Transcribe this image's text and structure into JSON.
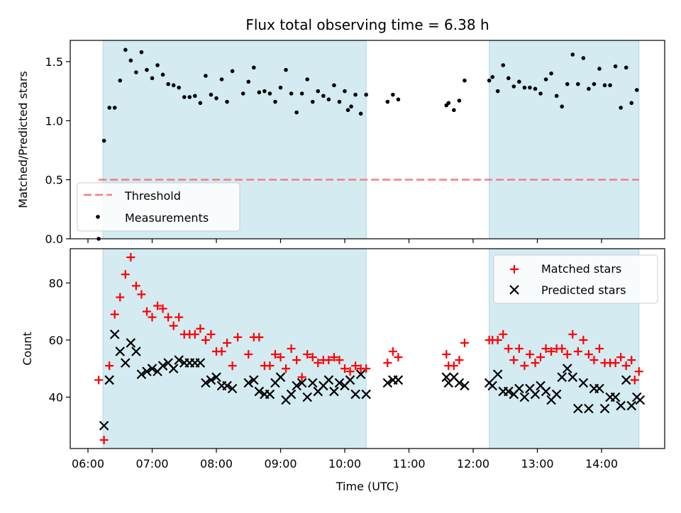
{
  "chart_data": {
    "title": "Flux total observing time = 6.38 h",
    "shaded_intervals": [
      [
        "06:14",
        "10:20"
      ],
      [
        "12:15",
        "14:35"
      ]
    ],
    "colors": {
      "shade": "#add8e6",
      "threshold": "#f08080",
      "matched": "#ff0000",
      "predicted": "#000000",
      "measure": "#000000"
    },
    "x_axis": {
      "label": "Time (UTC)",
      "ticks": [
        "06:00",
        "07:00",
        "08:00",
        "09:00",
        "10:00",
        "11:00",
        "12:00",
        "13:00",
        "14:00"
      ]
    },
    "top": {
      "type": "scatter",
      "ylabel": "Matched/Predicted stars",
      "ylim": [
        0,
        1.68
      ],
      "yticks": [
        "0.0",
        "0.5",
        "1.0",
        "1.5"
      ],
      "legend": {
        "position": "lower-left",
        "threshold_label": "Threshold",
        "measure_label": "Measurements"
      },
      "threshold": {
        "value": 0.5,
        "x_start": "06:10",
        "x_end": "14:35"
      },
      "measurements": [
        [
          "06:10",
          0.0
        ],
        [
          "06:15",
          0.83
        ],
        [
          "06:20",
          1.11
        ],
        [
          "06:25",
          1.11
        ],
        [
          "06:30",
          1.34
        ],
        [
          "06:35",
          1.6
        ],
        [
          "06:40",
          1.51
        ],
        [
          "06:45",
          1.41
        ],
        [
          "06:50",
          1.58
        ],
        [
          "06:55",
          1.43
        ],
        [
          "07:00",
          1.36
        ],
        [
          "07:05",
          1.47
        ],
        [
          "07:10",
          1.39
        ],
        [
          "07:15",
          1.31
        ],
        [
          "07:20",
          1.3
        ],
        [
          "07:25",
          1.28
        ],
        [
          "07:30",
          1.2
        ],
        [
          "07:35",
          1.2
        ],
        [
          "07:40",
          1.21
        ],
        [
          "07:45",
          1.15
        ],
        [
          "07:50",
          1.38
        ],
        [
          "07:55",
          1.22
        ],
        [
          "08:00",
          1.19
        ],
        [
          "08:05",
          1.35
        ],
        [
          "08:10",
          1.16
        ],
        [
          "08:15",
          1.42
        ],
        [
          "08:25",
          1.23
        ],
        [
          "08:30",
          1.33
        ],
        [
          "08:35",
          1.45
        ],
        [
          "08:40",
          1.24
        ],
        [
          "08:45",
          1.25
        ],
        [
          "08:50",
          1.23
        ],
        [
          "08:55",
          1.16
        ],
        [
          "09:00",
          1.28
        ],
        [
          "09:05",
          1.43
        ],
        [
          "09:10",
          1.23
        ],
        [
          "09:15",
          1.07
        ],
        [
          "09:20",
          1.23
        ],
        [
          "09:25",
          1.35
        ],
        [
          "09:30",
          1.16
        ],
        [
          "09:35",
          1.25
        ],
        [
          "09:40",
          1.21
        ],
        [
          "09:45",
          1.18
        ],
        [
          "09:50",
          1.3
        ],
        [
          "09:55",
          1.16
        ],
        [
          "10:00",
          1.25
        ],
        [
          "10:03",
          1.09
        ],
        [
          "10:06",
          1.12
        ],
        [
          "10:10",
          1.22
        ],
        [
          "10:15",
          1.06
        ],
        [
          "10:20",
          1.22
        ],
        [
          "10:40",
          1.16
        ],
        [
          "10:45",
          1.22
        ],
        [
          "10:50",
          1.18
        ],
        [
          "11:35",
          1.13
        ],
        [
          "11:37",
          1.15
        ],
        [
          "11:42",
          1.09
        ],
        [
          "11:47",
          1.17
        ],
        [
          "11:52",
          1.34
        ],
        [
          "12:15",
          1.34
        ],
        [
          "12:18",
          1.37
        ],
        [
          "12:23",
          1.25
        ],
        [
          "12:28",
          1.47
        ],
        [
          "12:33",
          1.36
        ],
        [
          "12:38",
          1.29
        ],
        [
          "12:43",
          1.33
        ],
        [
          "12:48",
          1.28
        ],
        [
          "12:53",
          1.28
        ],
        [
          "12:58",
          1.27
        ],
        [
          "13:03",
          1.23
        ],
        [
          "13:08",
          1.35
        ],
        [
          "13:13",
          1.4
        ],
        [
          "13:18",
          1.21
        ],
        [
          "13:23",
          1.12
        ],
        [
          "13:28",
          1.31
        ],
        [
          "13:33",
          1.56
        ],
        [
          "13:38",
          1.31
        ],
        [
          "13:43",
          1.53
        ],
        [
          "13:48",
          1.27
        ],
        [
          "13:53",
          1.31
        ],
        [
          "13:58",
          1.44
        ],
        [
          "14:03",
          1.3
        ],
        [
          "14:08",
          1.3
        ],
        [
          "14:13",
          1.46
        ],
        [
          "14:18",
          1.11
        ],
        [
          "14:23",
          1.45
        ],
        [
          "14:28",
          1.15
        ],
        [
          "14:33",
          1.26
        ]
      ]
    },
    "bottom": {
      "type": "scatter",
      "ylabel": "Count",
      "ylim": [
        22,
        92
      ],
      "yticks": [
        "40",
        "60",
        "80"
      ],
      "legend": {
        "position": "top-right",
        "matched_label": "Matched stars",
        "predicted_label": "Predicted stars"
      },
      "matched": [
        [
          "06:10",
          46
        ],
        [
          "06:15",
          25
        ],
        [
          "06:20",
          51
        ],
        [
          "06:25",
          69
        ],
        [
          "06:30",
          75
        ],
        [
          "06:35",
          83
        ],
        [
          "06:40",
          89
        ],
        [
          "06:45",
          79
        ],
        [
          "06:50",
          76
        ],
        [
          "06:55",
          70
        ],
        [
          "07:00",
          68
        ],
        [
          "07:05",
          72
        ],
        [
          "07:10",
          71
        ],
        [
          "07:15",
          68
        ],
        [
          "07:20",
          65
        ],
        [
          "07:25",
          68
        ],
        [
          "07:30",
          62
        ],
        [
          "07:35",
          62
        ],
        [
          "07:40",
          62
        ],
        [
          "07:45",
          64
        ],
        [
          "07:50",
          60
        ],
        [
          "07:55",
          62
        ],
        [
          "08:00",
          56
        ],
        [
          "08:05",
          56
        ],
        [
          "08:10",
          59
        ],
        [
          "08:15",
          51
        ],
        [
          "08:20",
          61
        ],
        [
          "08:30",
          55
        ],
        [
          "08:35",
          61
        ],
        [
          "08:40",
          61
        ],
        [
          "08:45",
          51
        ],
        [
          "08:50",
          51
        ],
        [
          "08:55",
          55
        ],
        [
          "09:00",
          54
        ],
        [
          "09:05",
          50
        ],
        [
          "09:10",
          57
        ],
        [
          "09:15",
          53
        ],
        [
          "09:20",
          47
        ],
        [
          "09:25",
          55
        ],
        [
          "09:30",
          54
        ],
        [
          "09:35",
          52
        ],
        [
          "09:40",
          53
        ],
        [
          "09:45",
          53
        ],
        [
          "09:50",
          54
        ],
        [
          "09:55",
          53
        ],
        [
          "10:00",
          50
        ],
        [
          "10:05",
          49
        ],
        [
          "10:10",
          51
        ],
        [
          "10:15",
          50
        ],
        [
          "10:20",
          50
        ],
        [
          "10:40",
          52
        ],
        [
          "10:45",
          56
        ],
        [
          "10:50",
          54
        ],
        [
          "11:35",
          55
        ],
        [
          "11:37",
          51
        ],
        [
          "11:42",
          51
        ],
        [
          "11:47",
          53
        ],
        [
          "11:52",
          59
        ],
        [
          "12:15",
          60
        ],
        [
          "12:18",
          60
        ],
        [
          "12:23",
          60
        ],
        [
          "12:28",
          62
        ],
        [
          "12:33",
          57
        ],
        [
          "12:38",
          53
        ],
        [
          "12:43",
          57
        ],
        [
          "12:48",
          51
        ],
        [
          "12:53",
          55
        ],
        [
          "12:58",
          52
        ],
        [
          "13:03",
          54
        ],
        [
          "13:08",
          57
        ],
        [
          "13:13",
          56
        ],
        [
          "13:18",
          57
        ],
        [
          "13:23",
          57
        ],
        [
          "13:28",
          55
        ],
        [
          "13:33",
          62
        ],
        [
          "13:38",
          56
        ],
        [
          "13:43",
          60
        ],
        [
          "13:48",
          55
        ],
        [
          "13:53",
          53
        ],
        [
          "13:58",
          57
        ],
        [
          "14:03",
          52
        ],
        [
          "14:08",
          52
        ],
        [
          "14:13",
          52
        ],
        [
          "14:18",
          54
        ],
        [
          "14:23",
          51
        ],
        [
          "14:28",
          53
        ],
        [
          "14:31",
          46
        ],
        [
          "14:35",
          49
        ]
      ],
      "predicted": [
        [
          "06:15",
          30
        ],
        [
          "06:20",
          46
        ],
        [
          "06:25",
          62
        ],
        [
          "06:30",
          56
        ],
        [
          "06:35",
          52
        ],
        [
          "06:40",
          59
        ],
        [
          "06:45",
          56
        ],
        [
          "06:50",
          48
        ],
        [
          "06:55",
          49
        ],
        [
          "07:00",
          50
        ],
        [
          "07:05",
          49
        ],
        [
          "07:10",
          51
        ],
        [
          "07:15",
          52
        ],
        [
          "07:20",
          50
        ],
        [
          "07:25",
          53
        ],
        [
          "07:30",
          52
        ],
        [
          "07:35",
          52
        ],
        [
          "07:40",
          52
        ],
        [
          "07:45",
          52
        ],
        [
          "07:50",
          45
        ],
        [
          "07:55",
          46
        ],
        [
          "08:00",
          47
        ],
        [
          "08:05",
          44
        ],
        [
          "08:10",
          44
        ],
        [
          "08:15",
          43
        ],
        [
          "08:30",
          45
        ],
        [
          "08:35",
          46
        ],
        [
          "08:40",
          42
        ],
        [
          "08:45",
          41
        ],
        [
          "08:50",
          41
        ],
        [
          "08:55",
          45
        ],
        [
          "09:00",
          47
        ],
        [
          "09:05",
          39
        ],
        [
          "09:10",
          41
        ],
        [
          "09:15",
          44
        ],
        [
          "09:20",
          45
        ],
        [
          "09:25",
          40
        ],
        [
          "09:30",
          45
        ],
        [
          "09:35",
          42
        ],
        [
          "09:40",
          44
        ],
        [
          "09:45",
          46
        ],
        [
          "09:50",
          42
        ],
        [
          "09:55",
          45
        ],
        [
          "10:00",
          44
        ],
        [
          "10:05",
          46
        ],
        [
          "10:10",
          41
        ],
        [
          "10:15",
          48
        ],
        [
          "10:20",
          41
        ],
        [
          "10:40",
          45
        ],
        [
          "10:45",
          46
        ],
        [
          "10:50",
          46
        ],
        [
          "11:35",
          47
        ],
        [
          "11:37",
          45
        ],
        [
          "11:42",
          47
        ],
        [
          "11:47",
          45
        ],
        [
          "11:52",
          44
        ],
        [
          "12:15",
          45
        ],
        [
          "12:18",
          44
        ],
        [
          "12:23",
          48
        ],
        [
          "12:28",
          42
        ],
        [
          "12:33",
          42
        ],
        [
          "12:38",
          41
        ],
        [
          "12:43",
          43
        ],
        [
          "12:48",
          40
        ],
        [
          "12:53",
          43
        ],
        [
          "12:58",
          41
        ],
        [
          "13:03",
          44
        ],
        [
          "13:08",
          42
        ],
        [
          "13:13",
          39
        ],
        [
          "13:18",
          41
        ],
        [
          "13:23",
          47
        ],
        [
          "13:28",
          50
        ],
        [
          "13:33",
          47
        ],
        [
          "13:38",
          36
        ],
        [
          "13:43",
          45
        ],
        [
          "13:48",
          36
        ],
        [
          "13:53",
          43
        ],
        [
          "13:58",
          43
        ],
        [
          "14:03",
          36
        ],
        [
          "14:08",
          40
        ],
        [
          "14:13",
          40
        ],
        [
          "14:18",
          37
        ],
        [
          "14:23",
          46
        ],
        [
          "14:28",
          37
        ],
        [
          "14:33",
          40
        ],
        [
          "14:36",
          39
        ]
      ]
    }
  }
}
